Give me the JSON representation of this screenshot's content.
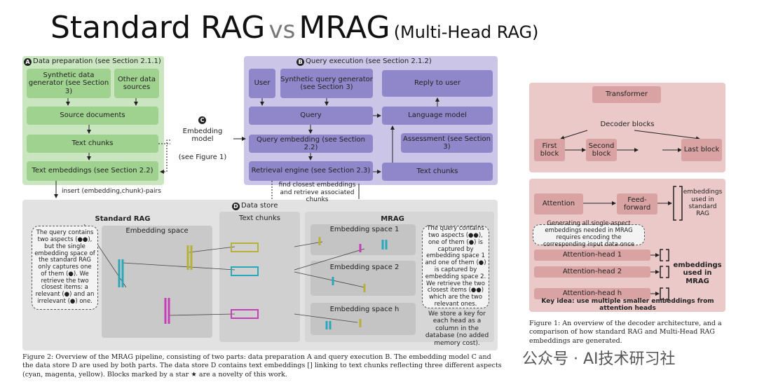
{
  "title": {
    "main": "Standard RAG",
    "vs": "vs",
    "mrag": "MRAG",
    "sub": "(Multi-Head RAG)"
  },
  "figure2": {
    "section_a": {
      "letter": "A",
      "title": "Data preparation (see Section 2.1.1)",
      "synthetic_generator": "Synthetic data generator (see Section 3)",
      "other_sources": "Other data sources",
      "source_documents": "Source documents",
      "text_chunks": "Text chunks",
      "text_embeddings": "Text embeddings (see Section 2.2)",
      "insert_label": "insert (embedding,chunk)-pairs"
    },
    "section_b": {
      "letter": "B",
      "title": "Query execution (see Section 2.1.2)",
      "user": "User",
      "synthetic_query_generator": "Synthetic query generator (see Section 3)",
      "reply": "Reply to user",
      "query": "Query",
      "language_model": "Language model",
      "query_embedding": "Query embedding (see Section 2.2)",
      "assessment": "Assessment (see Section 3)",
      "retrieval_engine": "Retrieval engine (see Section 2.3)",
      "text_chunks": "Text chunks",
      "find_label": "find closest embeddings and retrieve associated chunks"
    },
    "section_c": {
      "letter": "C",
      "title": "Embedding model",
      "ref": "(see Figure 1)"
    },
    "section_d": {
      "letter": "D",
      "title": "Data store",
      "standard_rag": "Standard RAG",
      "embedding_space": "Embedding space",
      "text_chunks": "Text chunks",
      "mrag": "MRAG",
      "space_1": "Embedding space 1",
      "space_2": "Embedding space 2",
      "space_h": "Embedding space h",
      "left_note": "The query contains two aspects (●●), but the single embedding space of the standard RAG only captures one of them (●). We retrieve the two closest items: a relevant (●) and an irrelevant (●) one.",
      "right_note": "The query contains two aspects (●●), one of them (●) is captured by embedding space 1 and one of them (●) is captured by embedding space 2. We retrieve the two closest items (●●) which are the two relevant ones.",
      "key_note": "We store a key for each head as a column in the database (no added memory cost)."
    },
    "caption": "Figure 2: Overview of the MRAG pipeline, consisting of two parts: data preparation A and query execution B. The embedding model C and the data store D are used by both parts. The data store D contains text embeddings [] linking to text chunks reflecting three different aspects (cyan, magenta, yellow). Blocks marked by a star ★ are a novelty of this work."
  },
  "figure1": {
    "transformer": "Transformer",
    "decoder_blocks": "Decoder blocks",
    "first_block": "First block",
    "second_block": "Second block",
    "last_block": "Last block",
    "attention": "Attention",
    "feed_forward": "Feed-forward",
    "standard_embeddings": "embeddings used in standard RAG",
    "note": "Generating all single-aspect embeddings needed in MRAG requires encoding the corresponding input data once",
    "head_1": "Attention-head 1",
    "head_2": "Attention-head 2",
    "head_h": "Attention-head h",
    "mrag_embeddings": "embeddings used in MRAG",
    "key_idea": "Key idea: use multiple smaller embeddings from attention heads",
    "caption": "Figure 1: An overview of the decoder architecture, and a comparison of how standard RAG and Multi-Head RAG embeddings are generated."
  },
  "watermark": "公众号 · AI技术研习社"
}
